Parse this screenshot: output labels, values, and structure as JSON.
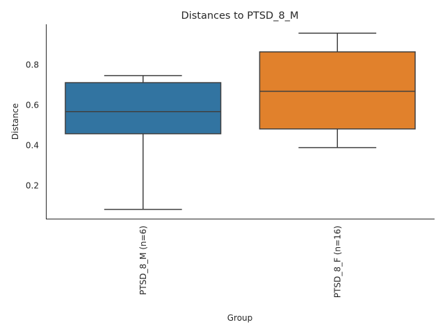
{
  "chart_data": {
    "type": "box",
    "title": "Distances to PTSD_8_M",
    "xlabel": "Group",
    "ylabel": "Distance",
    "ylim": [
      0.034,
      1.0
    ],
    "yticks": [
      0.2,
      0.4,
      0.6,
      0.8
    ],
    "ytick_labels": [
      "0.2",
      "0.4",
      "0.6",
      "0.8"
    ],
    "grid": false,
    "categories": [
      "PTSD_8_M (n=6)",
      "PTSD_8_F (n=16)"
    ],
    "boxes": [
      {
        "name": "PTSD_8_M (n=6)",
        "whisker_low": 0.08,
        "q1": 0.456,
        "median": 0.566,
        "q3": 0.71,
        "whisker_high": 0.745,
        "color": "#3274a1"
      },
      {
        "name": "PTSD_8_F (n=16)",
        "whisker_low": 0.387,
        "q1": 0.48,
        "median": 0.667,
        "q3": 0.863,
        "whisker_high": 0.956,
        "color": "#e1812c"
      }
    ]
  }
}
